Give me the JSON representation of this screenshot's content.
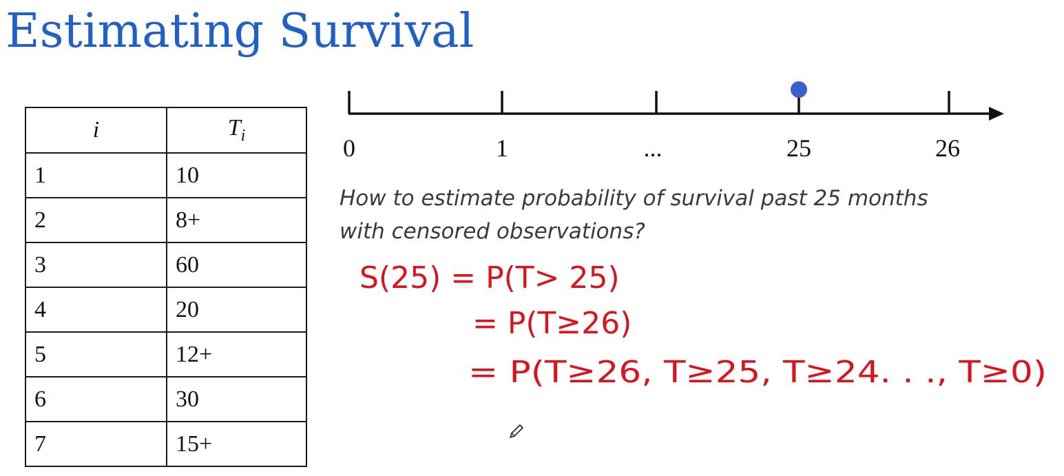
{
  "slide": {
    "title": "Estimating Survival"
  },
  "table": {
    "headers": {
      "index": "i",
      "time": "T",
      "time_subscript": "i"
    },
    "rows": [
      {
        "i": "1",
        "t": "10"
      },
      {
        "i": "2",
        "t": "8+"
      },
      {
        "i": "3",
        "t": "60"
      },
      {
        "i": "4",
        "t": "20"
      },
      {
        "i": "5",
        "t": "12+"
      },
      {
        "i": "6",
        "t": "30"
      },
      {
        "i": "7",
        "t": "15+"
      }
    ]
  },
  "timeline": {
    "labels": [
      "0",
      "1",
      "...",
      "25",
      "26"
    ],
    "marked_label": "25",
    "marker_color": "#3a5fc8"
  },
  "question": {
    "line1": "How to estimate probability of survival past 25 months",
    "line2": "with censored observations?"
  },
  "handwriting": {
    "line1": "S(25) = P(T> 25)",
    "line2": "= P(T≥26)",
    "line3": "= P(T≥26, T≥25, T≥24. . ., T≥0)",
    "color": "#d8141e"
  },
  "icons": {
    "cursor": "pencil-cursor-icon"
  }
}
